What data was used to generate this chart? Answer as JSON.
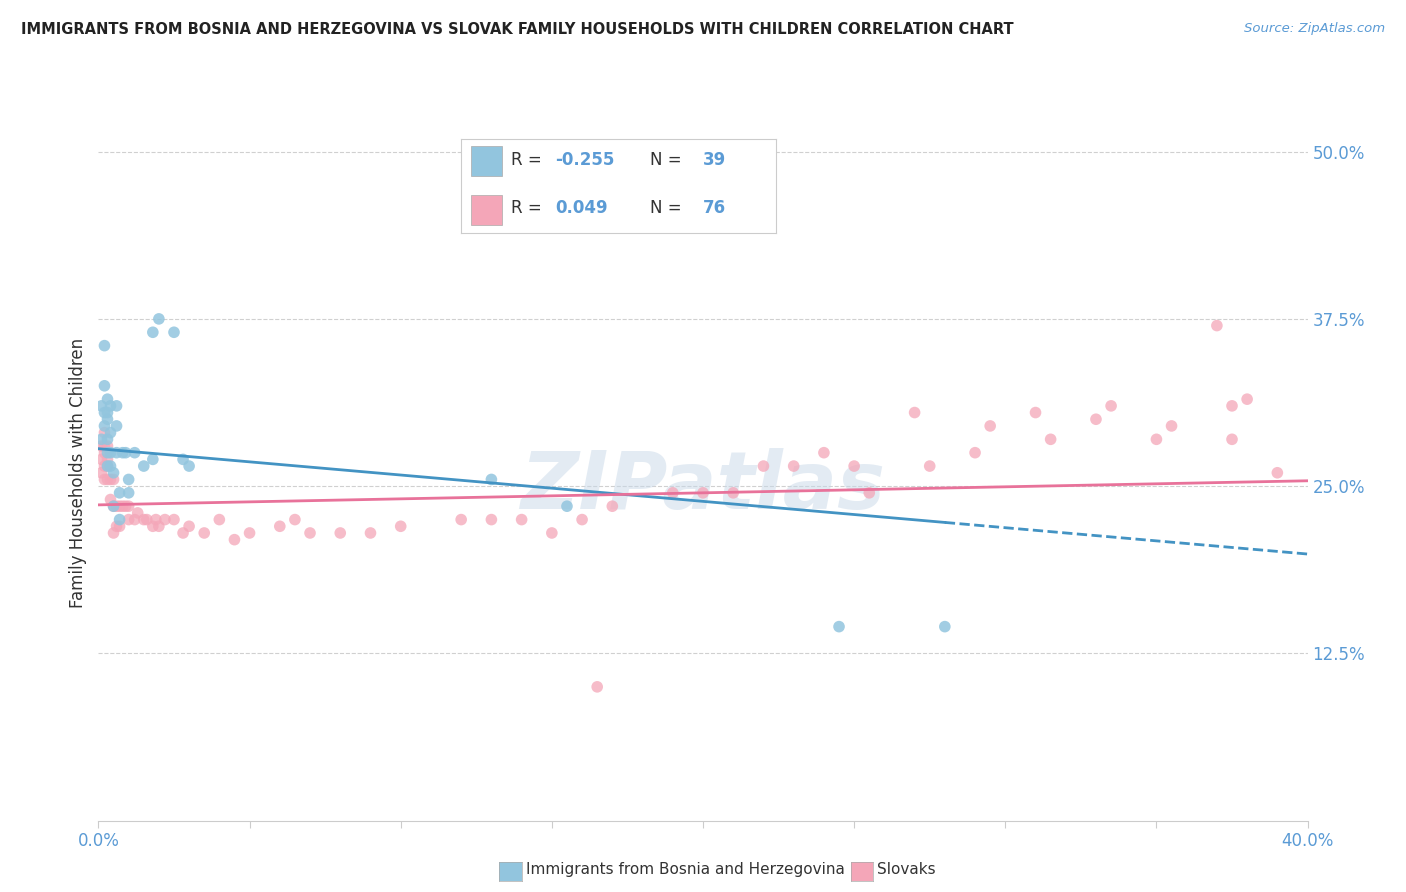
{
  "title": "IMMIGRANTS FROM BOSNIA AND HERZEGOVINA VS SLOVAK FAMILY HOUSEHOLDS WITH CHILDREN CORRELATION CHART",
  "source": "Source: ZipAtlas.com",
  "ylabel": "Family Households with Children",
  "xlim": [
    0.0,
    0.4
  ],
  "ylim": [
    0.0,
    0.52
  ],
  "ytick_positions": [
    0.125,
    0.25,
    0.375,
    0.5
  ],
  "ytick_labels": [
    "12.5%",
    "25.0%",
    "37.5%",
    "50.0%"
  ],
  "color_blue": "#92c5de",
  "color_pink": "#f4a6b8",
  "color_blue_line": "#4393c3",
  "color_pink_line": "#e8729a",
  "watermark": "ZIPatlas",
  "bosnia_x": [
    0.001,
    0.001,
    0.002,
    0.002,
    0.002,
    0.002,
    0.003,
    0.003,
    0.003,
    0.003,
    0.003,
    0.003,
    0.004,
    0.004,
    0.004,
    0.004,
    0.005,
    0.005,
    0.006,
    0.006,
    0.006,
    0.007,
    0.007,
    0.008,
    0.009,
    0.01,
    0.01,
    0.012,
    0.015,
    0.018,
    0.018,
    0.02,
    0.025,
    0.028,
    0.03,
    0.13,
    0.155,
    0.245,
    0.28
  ],
  "bosnia_y": [
    0.285,
    0.31,
    0.295,
    0.305,
    0.325,
    0.355,
    0.265,
    0.275,
    0.285,
    0.3,
    0.305,
    0.315,
    0.265,
    0.275,
    0.29,
    0.31,
    0.235,
    0.26,
    0.31,
    0.295,
    0.275,
    0.245,
    0.225,
    0.275,
    0.275,
    0.245,
    0.255,
    0.275,
    0.265,
    0.27,
    0.365,
    0.375,
    0.365,
    0.27,
    0.265,
    0.255,
    0.235,
    0.145,
    0.145
  ],
  "slovak_x": [
    0.001,
    0.001,
    0.001,
    0.002,
    0.002,
    0.002,
    0.002,
    0.002,
    0.003,
    0.003,
    0.003,
    0.003,
    0.004,
    0.004,
    0.005,
    0.005,
    0.005,
    0.006,
    0.006,
    0.007,
    0.007,
    0.008,
    0.009,
    0.01,
    0.01,
    0.012,
    0.013,
    0.015,
    0.016,
    0.018,
    0.019,
    0.02,
    0.022,
    0.025,
    0.028,
    0.03,
    0.035,
    0.04,
    0.045,
    0.05,
    0.06,
    0.065,
    0.07,
    0.08,
    0.09,
    0.1,
    0.12,
    0.13,
    0.14,
    0.16,
    0.17,
    0.19,
    0.21,
    0.22,
    0.24,
    0.25,
    0.27,
    0.29,
    0.31,
    0.33,
    0.35,
    0.37,
    0.375,
    0.38,
    0.39,
    0.2,
    0.23,
    0.255,
    0.275,
    0.295,
    0.315,
    0.335,
    0.355,
    0.375,
    0.15,
    0.165
  ],
  "slovak_y": [
    0.26,
    0.27,
    0.28,
    0.255,
    0.265,
    0.275,
    0.28,
    0.29,
    0.255,
    0.265,
    0.27,
    0.28,
    0.24,
    0.255,
    0.215,
    0.235,
    0.255,
    0.22,
    0.235,
    0.22,
    0.235,
    0.235,
    0.235,
    0.225,
    0.235,
    0.225,
    0.23,
    0.225,
    0.225,
    0.22,
    0.225,
    0.22,
    0.225,
    0.225,
    0.215,
    0.22,
    0.215,
    0.225,
    0.21,
    0.215,
    0.22,
    0.225,
    0.215,
    0.215,
    0.215,
    0.22,
    0.225,
    0.225,
    0.225,
    0.225,
    0.235,
    0.245,
    0.245,
    0.265,
    0.275,
    0.265,
    0.305,
    0.275,
    0.305,
    0.3,
    0.285,
    0.37,
    0.31,
    0.315,
    0.26,
    0.245,
    0.265,
    0.245,
    0.265,
    0.295,
    0.285,
    0.31,
    0.295,
    0.285,
    0.215,
    0.1
  ],
  "bosnia_line_x0": 0.0,
  "bosnia_line_y0": 0.278,
  "bosnia_line_x1": 0.32,
  "bosnia_line_y1": 0.215,
  "slovak_line_x0": 0.0,
  "slovak_line_y0": 0.236,
  "slovak_line_x1": 0.4,
  "slovak_line_y1": 0.254
}
